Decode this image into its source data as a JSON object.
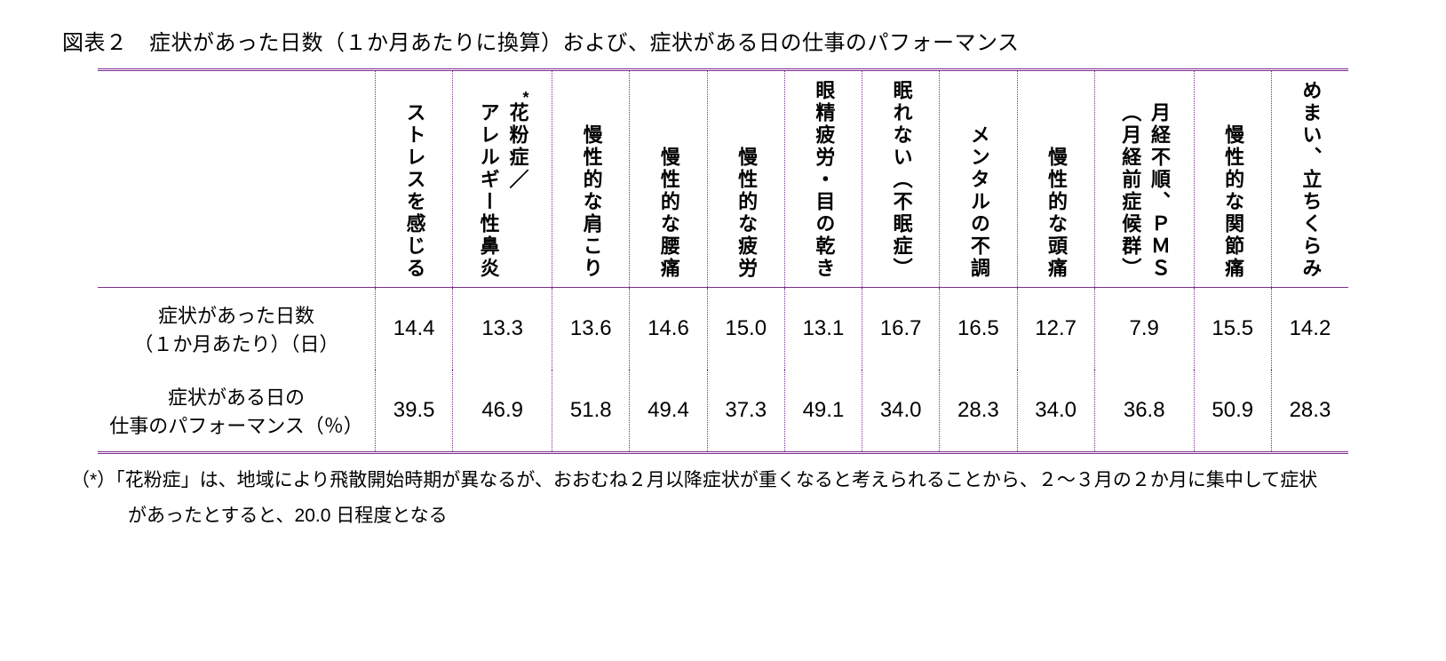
{
  "title": "図表２　症状があった日数（１か月あたりに換算）および、症状がある日の仕事のパフォーマンス",
  "table": {
    "border_color": "#7b2d8e",
    "column_header_fontsize": 22,
    "cell_fontsize": 24,
    "columns": [
      {
        "lines": [
          "ストレスを感じる"
        ],
        "asterisk": false
      },
      {
        "lines": [
          "アレルギー性鼻炎",
          "花粉症／"
        ],
        "asterisk": true
      },
      {
        "lines": [
          "慢性的な肩こり"
        ],
        "asterisk": false
      },
      {
        "lines": [
          "慢性的な腰痛"
        ],
        "asterisk": false
      },
      {
        "lines": [
          "慢性的な疲労"
        ],
        "asterisk": false
      },
      {
        "lines": [
          "眼精疲労・目の乾き"
        ],
        "asterisk": false
      },
      {
        "lines": [
          "眠れない（不眠症）"
        ],
        "asterisk": false
      },
      {
        "lines": [
          "メンタルの不調"
        ],
        "asterisk": false
      },
      {
        "lines": [
          "慢性的な頭痛"
        ],
        "asterisk": false
      },
      {
        "lines": [
          "（月経前症候群）",
          "月経不順、ＰＭＳ"
        ],
        "asterisk": false
      },
      {
        "lines": [
          "慢性的な関節痛"
        ],
        "asterisk": false
      },
      {
        "lines": [
          "めまい、立ちくらみ"
        ],
        "asterisk": false
      }
    ],
    "rows": [
      {
        "label_line1": "症状があった日数",
        "label_line2": "（１か月あたり）（日）",
        "values": [
          "14.4",
          "13.3",
          "13.6",
          "14.6",
          "15.0",
          "13.1",
          "16.7",
          "16.5",
          "12.7",
          "7.9",
          "15.5",
          "14.2"
        ]
      },
      {
        "label_line1": "症状がある日の",
        "label_line2": "仕事のパフォーマンス（％）",
        "values": [
          "39.5",
          "46.9",
          "51.8",
          "49.4",
          "37.3",
          "49.1",
          "34.0",
          "28.3",
          "34.0",
          "36.8",
          "50.9",
          "28.3"
        ]
      }
    ]
  },
  "footnote": {
    "line1": "（*）「花粉症」は、地域により飛散開始時期が異なるが、おおむね２月以降症状が重くなると考えられることから、２～３月の２か月に集中して症状",
    "line2": "があったとすると、20.0 日程度となる"
  }
}
